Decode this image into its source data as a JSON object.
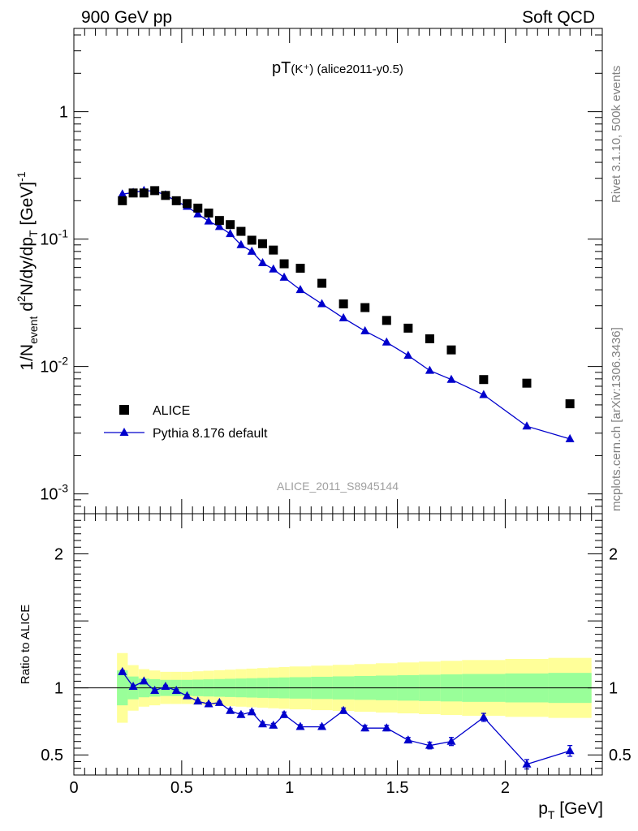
{
  "header": {
    "left": "900 GeV pp",
    "right": "Soft QCD"
  },
  "side_labels": {
    "rivet": "Rivet 3.1.10,  500k events",
    "source": "mcplots.cern.ch [arXiv:1306.3436]"
  },
  "chart_data": [
    {
      "type": "scatter",
      "panel": "main",
      "title": "pT(K⁺) (alice2011-y0.5)",
      "title_main": "pT",
      "title_paren": "(K⁺)",
      "title_suffix": "(alice2011-y0.5)",
      "watermark": "ALICE_2011_S8945144",
      "ylabel": "1/N_event d²N/dy/dp_T [GeV⁻¹]",
      "ylabel_parts": {
        "a": "1/N",
        "a_sub": "event",
        "b": " d",
        "b_sup": "2",
        "c": "N/dy/dp",
        "c_sub": "T",
        "d": " [GeV]",
        "d_sup": "-1"
      },
      "yscale": "log",
      "ylim": [
        0.0007,
        4.5
      ],
      "xlim": [
        0,
        2.45
      ],
      "ytick_labels": [
        {
          "value": 0.001,
          "base": "10",
          "exp": "-3"
        },
        {
          "value": 0.01,
          "base": "10",
          "exp": "-2"
        },
        {
          "value": 0.1,
          "base": "10",
          "exp": "-1"
        },
        {
          "value": 1,
          "base": "1",
          "exp": ""
        }
      ],
      "legend_position": "lower-left",
      "series": [
        {
          "name": "ALICE",
          "marker": "square",
          "color": "#000000",
          "x": [
            0.225,
            0.275,
            0.325,
            0.375,
            0.425,
            0.475,
            0.525,
            0.575,
            0.625,
            0.675,
            0.725,
            0.775,
            0.825,
            0.875,
            0.925,
            0.975,
            1.05,
            1.15,
            1.25,
            1.35,
            1.45,
            1.55,
            1.65,
            1.75,
            1.9,
            2.1,
            2.3
          ],
          "values": [
            0.2,
            0.23,
            0.23,
            0.24,
            0.22,
            0.2,
            0.19,
            0.175,
            0.16,
            0.14,
            0.13,
            0.115,
            0.098,
            0.092,
            0.082,
            0.064,
            0.059,
            0.045,
            0.031,
            0.029,
            0.023,
            0.02,
            0.0165,
            0.0135,
            0.0079,
            0.0074,
            0.0051
          ]
        },
        {
          "name": "Pythia 8.176 default",
          "marker": "triangle",
          "color": "#0000cc",
          "x": [
            0.225,
            0.275,
            0.325,
            0.375,
            0.425,
            0.475,
            0.525,
            0.575,
            0.625,
            0.675,
            0.725,
            0.775,
            0.825,
            0.875,
            0.925,
            0.975,
            1.05,
            1.15,
            1.25,
            1.35,
            1.45,
            1.55,
            1.65,
            1.75,
            1.9,
            2.1,
            2.3
          ],
          "values": [
            0.225,
            0.232,
            0.24,
            0.238,
            0.222,
            0.198,
            0.18,
            0.157,
            0.138,
            0.125,
            0.11,
            0.09,
            0.08,
            0.065,
            0.058,
            0.05,
            0.04,
            0.031,
            0.024,
            0.019,
            0.0155,
            0.0122,
            0.0093,
            0.0079,
            0.006,
            0.0034,
            0.0027
          ]
        }
      ]
    },
    {
      "type": "line",
      "panel": "ratio",
      "ylabel": "Ratio to ALICE",
      "xlabel": "p_T [GeV]",
      "xlabel_parts": {
        "a": "p",
        "a_sub": "T",
        "b": " [GeV]"
      },
      "ylim": [
        0.35,
        2.3
      ],
      "xlim": [
        0,
        2.45
      ],
      "yticks": [
        0.5,
        1,
        2
      ],
      "ytick_labels": [
        "0.5",
        "1",
        "2"
      ],
      "xticks": [
        0,
        0.5,
        1,
        1.5,
        2
      ],
      "xtick_labels": [
        "0",
        "0.5",
        "1",
        "1.5",
        "2"
      ],
      "bands": {
        "bin_edges": [
          0.2,
          0.25,
          0.3,
          0.35,
          0.4,
          0.45,
          0.5,
          0.55,
          0.6,
          0.65,
          0.7,
          0.75,
          0.8,
          0.85,
          0.9,
          0.95,
          1.0,
          1.1,
          1.2,
          1.3,
          1.4,
          1.5,
          1.6,
          1.7,
          1.8,
          2.0,
          2.2,
          2.4
        ],
        "green_halfwidth": [
          0.13,
          0.085,
          0.07,
          0.065,
          0.06,
          0.06,
          0.06,
          0.062,
          0.064,
          0.066,
          0.068,
          0.07,
          0.072,
          0.074,
          0.076,
          0.078,
          0.08,
          0.083,
          0.086,
          0.089,
          0.092,
          0.095,
          0.098,
          0.101,
          0.104,
          0.108,
          0.112
        ],
        "yellow_halfwidth": [
          0.26,
          0.17,
          0.14,
          0.13,
          0.12,
          0.12,
          0.12,
          0.124,
          0.128,
          0.132,
          0.136,
          0.14,
          0.144,
          0.148,
          0.152,
          0.156,
          0.16,
          0.166,
          0.172,
          0.178,
          0.184,
          0.19,
          0.196,
          0.202,
          0.208,
          0.216,
          0.224
        ],
        "green_color": "#99ff99",
        "yellow_color": "#ffff99"
      },
      "reference_line": 1,
      "series": [
        {
          "name": "Pythia 8.176 default",
          "color": "#0000cc",
          "x": [
            0.225,
            0.275,
            0.325,
            0.375,
            0.425,
            0.475,
            0.525,
            0.575,
            0.625,
            0.675,
            0.725,
            0.775,
            0.825,
            0.875,
            0.925,
            0.975,
            1.05,
            1.15,
            1.25,
            1.35,
            1.45,
            1.55,
            1.65,
            1.75,
            1.9,
            2.1,
            2.3
          ],
          "values": [
            1.12,
            1.01,
            1.05,
            0.98,
            1.01,
            0.98,
            0.94,
            0.9,
            0.88,
            0.89,
            0.83,
            0.8,
            0.82,
            0.73,
            0.72,
            0.8,
            0.71,
            0.71,
            0.83,
            0.7,
            0.7,
            0.61,
            0.57,
            0.6,
            0.78,
            0.43,
            0.53
          ],
          "errors": [
            0.01,
            0.01,
            0.01,
            0.01,
            0.01,
            0.01,
            0.01,
            0.01,
            0.01,
            0.01,
            0.015,
            0.015,
            0.015,
            0.015,
            0.015,
            0.02,
            0.015,
            0.015,
            0.02,
            0.02,
            0.02,
            0.02,
            0.025,
            0.03,
            0.03,
            0.035,
            0.04
          ]
        }
      ]
    }
  ]
}
